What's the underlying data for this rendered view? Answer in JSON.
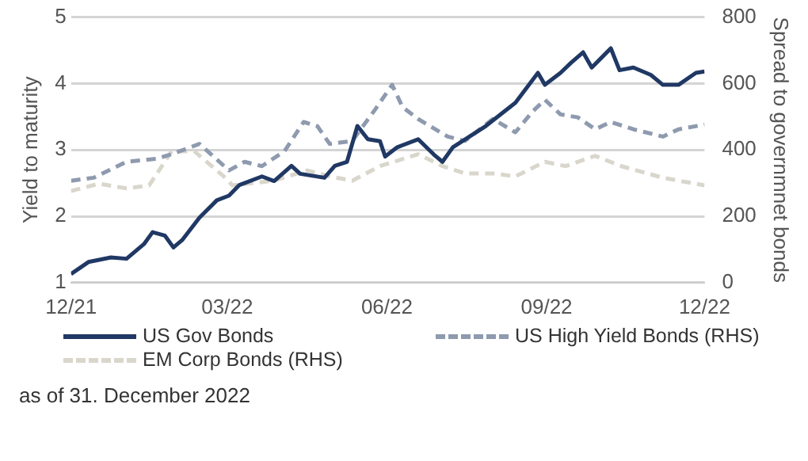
{
  "chart_data": {
    "type": "line",
    "ylabel": "Yield to maturity",
    "y2label": "Spread to governmnet bonds",
    "xlim": [
      "2021-12-01",
      "2022-12-01"
    ],
    "xticks": [
      {
        "value": "2021-12-01",
        "label": "12/21"
      },
      {
        "value": "2022-03-01",
        "label": "03/22"
      },
      {
        "value": "2022-06-01",
        "label": "06/22"
      },
      {
        "value": "2022-09-01",
        "label": "09/22"
      },
      {
        "value": "2022-12-01",
        "label": "12/22"
      }
    ],
    "ylim": [
      1,
      5
    ],
    "yticks": [
      1,
      2,
      3,
      4,
      5
    ],
    "y2lim": [
      0,
      800
    ],
    "y2ticks": [
      0,
      200,
      400,
      600,
      800
    ],
    "grid": "y",
    "legend": "bottom",
    "marker": "none",
    "annotations": [
      "as of 31. December 2022"
    ],
    "series": [
      {
        "name": "US Gov Bonds",
        "color": "#203864",
        "line_style": "solid",
        "x": [
          "2021-12-01",
          "2021-12-11",
          "2021-12-24",
          "2022-01-02",
          "2022-01-12",
          "2022-01-17",
          "2022-01-24",
          "2022-01-29",
          "2022-02-03",
          "2022-02-13",
          "2022-02-23",
          "2022-03-02",
          "2022-03-08",
          "2022-03-21",
          "2022-03-28",
          "2022-04-07",
          "2022-04-12",
          "2022-04-26",
          "2022-05-02",
          "2022-05-09",
          "2022-05-15",
          "2022-05-21",
          "2022-05-28",
          "2022-05-31",
          "2022-06-07",
          "2022-06-19",
          "2022-06-28",
          "2022-07-03",
          "2022-07-09",
          "2022-07-28",
          "2022-08-14",
          "2022-08-27",
          "2022-08-31",
          "2022-09-09",
          "2022-09-15",
          "2022-09-22",
          "2022-09-27",
          "2022-10-08",
          "2022-10-13",
          "2022-10-21",
          "2022-10-31",
          "2022-11-07",
          "2022-11-16",
          "2022-11-26",
          "2022-12-01"
        ],
        "values": [
          1.13,
          1.31,
          1.38,
          1.36,
          1.58,
          1.76,
          1.71,
          1.53,
          1.64,
          1.98,
          2.24,
          2.31,
          2.47,
          2.6,
          2.53,
          2.76,
          2.64,
          2.58,
          2.76,
          2.82,
          3.36,
          3.16,
          3.13,
          2.9,
          3.04,
          3.16,
          2.93,
          2.82,
          3.04,
          3.36,
          3.71,
          4.16,
          3.98,
          4.16,
          4.31,
          4.47,
          4.24,
          4.53,
          4.2,
          4.24,
          4.13,
          3.98,
          3.98,
          4.16,
          4.18
        ]
      },
      {
        "name": "US High Yield Bonds (RHS)",
        "color": "#8e9aae",
        "line_style": "dashed",
        "axis": "y2",
        "x": [
          "2021-12-01",
          "2021-12-14",
          "2022-01-02",
          "2022-01-19",
          "2022-01-28",
          "2022-02-13",
          "2022-03-02",
          "2022-03-11",
          "2022-03-21",
          "2022-04-03",
          "2022-04-14",
          "2022-04-22",
          "2022-04-29",
          "2022-05-12",
          "2022-05-25",
          "2022-06-04",
          "2022-06-10",
          "2022-06-19",
          "2022-07-06",
          "2022-07-16",
          "2022-08-01",
          "2022-08-14",
          "2022-08-24",
          "2022-08-31",
          "2022-09-09",
          "2022-09-19",
          "2022-09-29",
          "2022-10-08",
          "2022-10-21",
          "2022-11-07",
          "2022-11-16",
          "2022-12-01"
        ],
        "values": [
          307,
          316,
          364,
          373,
          387,
          418,
          338,
          364,
          351,
          396,
          484,
          471,
          418,
          427,
          520,
          596,
          529,
          493,
          440,
          427,
          493,
          453,
          516,
          551,
          507,
          498,
          462,
          484,
          462,
          440,
          462,
          476
        ]
      },
      {
        "name": "EM Corp Bonds (RHS)",
        "color": "#d9d6cc",
        "line_style": "dashed",
        "axis": "y2",
        "x": [
          "2021-12-01",
          "2021-12-17",
          "2022-01-02",
          "2022-01-15",
          "2022-01-28",
          "2022-02-10",
          "2022-02-27",
          "2022-03-04",
          "2022-03-28",
          "2022-04-16",
          "2022-04-29",
          "2022-05-12",
          "2022-05-28",
          "2022-06-19",
          "2022-07-03",
          "2022-07-16",
          "2022-08-01",
          "2022-08-14",
          "2022-08-31",
          "2022-09-12",
          "2022-09-29",
          "2022-10-14",
          "2022-11-07",
          "2022-12-01"
        ],
        "values": [
          276,
          298,
          284,
          293,
          396,
          396,
          320,
          293,
          307,
          338,
          320,
          307,
          351,
          387,
          351,
          329,
          329,
          320,
          364,
          351,
          382,
          351,
          316,
          293
        ]
      }
    ]
  }
}
